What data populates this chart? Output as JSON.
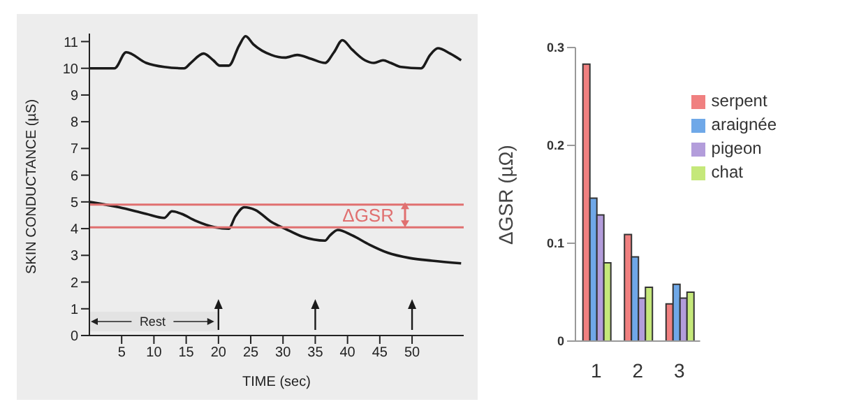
{
  "chart_data": [
    {
      "type": "line",
      "xlabel": "TIME (sec)",
      "ylabel": "SKIN CONDUCTANCE (µS)",
      "xlim": [
        0,
        58
      ],
      "xticks": [
        5,
        10,
        15,
        20,
        25,
        30,
        35,
        40,
        45,
        50
      ],
      "ylim": [
        0,
        11.3
      ],
      "yticks": [
        0,
        1,
        2,
        3,
        4,
        5,
        6,
        7,
        8,
        9,
        10,
        11
      ],
      "grid": false,
      "marker": "none",
      "line_style": "solid",
      "series": [
        {
          "color": "#1a1a1a",
          "x": [
            0,
            3.9,
            5.7,
            8.8,
            11.6,
            14.7,
            15.7,
            17.7,
            19.2,
            20.2,
            21.6,
            23.2,
            24.2,
            25.4,
            28.2,
            30.3,
            32.2,
            34.4,
            36.5,
            37.9,
            39.2,
            40.7,
            42.7,
            44.1,
            45.5,
            46.7,
            48.3,
            51.4,
            52.8,
            54,
            55.9,
            57.6
          ],
          "values": [
            10.0,
            10.0,
            10.6,
            10.2,
            10.05,
            10.0,
            10.2,
            10.55,
            10.3,
            10.1,
            10.1,
            10.85,
            11.2,
            10.9,
            10.5,
            10.4,
            10.5,
            10.35,
            10.2,
            10.6,
            11.05,
            10.7,
            10.3,
            10.2,
            10.3,
            10.2,
            10.05,
            10.0,
            10.5,
            10.75,
            10.55,
            10.3
          ]
        },
        {
          "color": "#1a1a1a",
          "x": [
            0,
            4.6,
            8.8,
            11.6,
            12.8,
            14.3,
            16.4,
            19.5,
            21.6,
            22.6,
            24,
            25.7,
            28.2,
            30.3,
            33,
            36.5,
            37.3,
            38.5,
            40.7,
            43.4,
            46.2,
            49.6,
            53.1,
            57.6
          ],
          "values": [
            5.0,
            4.8,
            4.55,
            4.4,
            4.65,
            4.55,
            4.3,
            4.05,
            4.0,
            4.45,
            4.8,
            4.7,
            4.25,
            4.0,
            3.7,
            3.55,
            3.75,
            3.95,
            3.75,
            3.4,
            3.1,
            2.9,
            2.8,
            2.7
          ]
        }
      ],
      "ref_lines": [
        {
          "axis": "y",
          "value": 4.9,
          "label": null,
          "color": "#e07070"
        },
        {
          "axis": "y",
          "value": 4.05,
          "label": "ΔGSR",
          "color": "#e07070"
        },
        {
          "axis": "x",
          "value": 20,
          "label": null,
          "color": "#1a1a1a"
        },
        {
          "axis": "x",
          "value": 35,
          "label": null,
          "color": "#1a1a1a"
        },
        {
          "axis": "x",
          "value": 50,
          "label": null,
          "color": "#1a1a1a"
        }
      ],
      "bands": [
        {
          "axis": "x",
          "from": 0,
          "to": 20,
          "label": "Rest"
        }
      ]
    },
    {
      "type": "bar",
      "ylabel": "ΔGSR (µΩ)",
      "categories": [
        "1",
        "2",
        "3"
      ],
      "ylim": [
        0,
        0.3
      ],
      "yticks": [
        0,
        0.1,
        0.2,
        0.3
      ],
      "grid": false,
      "legend": "top right",
      "series": [
        {
          "name": "serpent",
          "color": "#f08080",
          "values": [
            0.283,
            0.109,
            0.038
          ]
        },
        {
          "name": "araignée",
          "color": "#6fa8e8",
          "values": [
            0.146,
            0.086,
            0.058
          ]
        },
        {
          "name": "pigeon",
          "color": "#b39ddb",
          "values": [
            0.129,
            0.044,
            0.044
          ]
        },
        {
          "name": "chat",
          "color": "#c5e87a",
          "values": [
            0.08,
            0.055,
            0.05
          ]
        }
      ]
    }
  ]
}
